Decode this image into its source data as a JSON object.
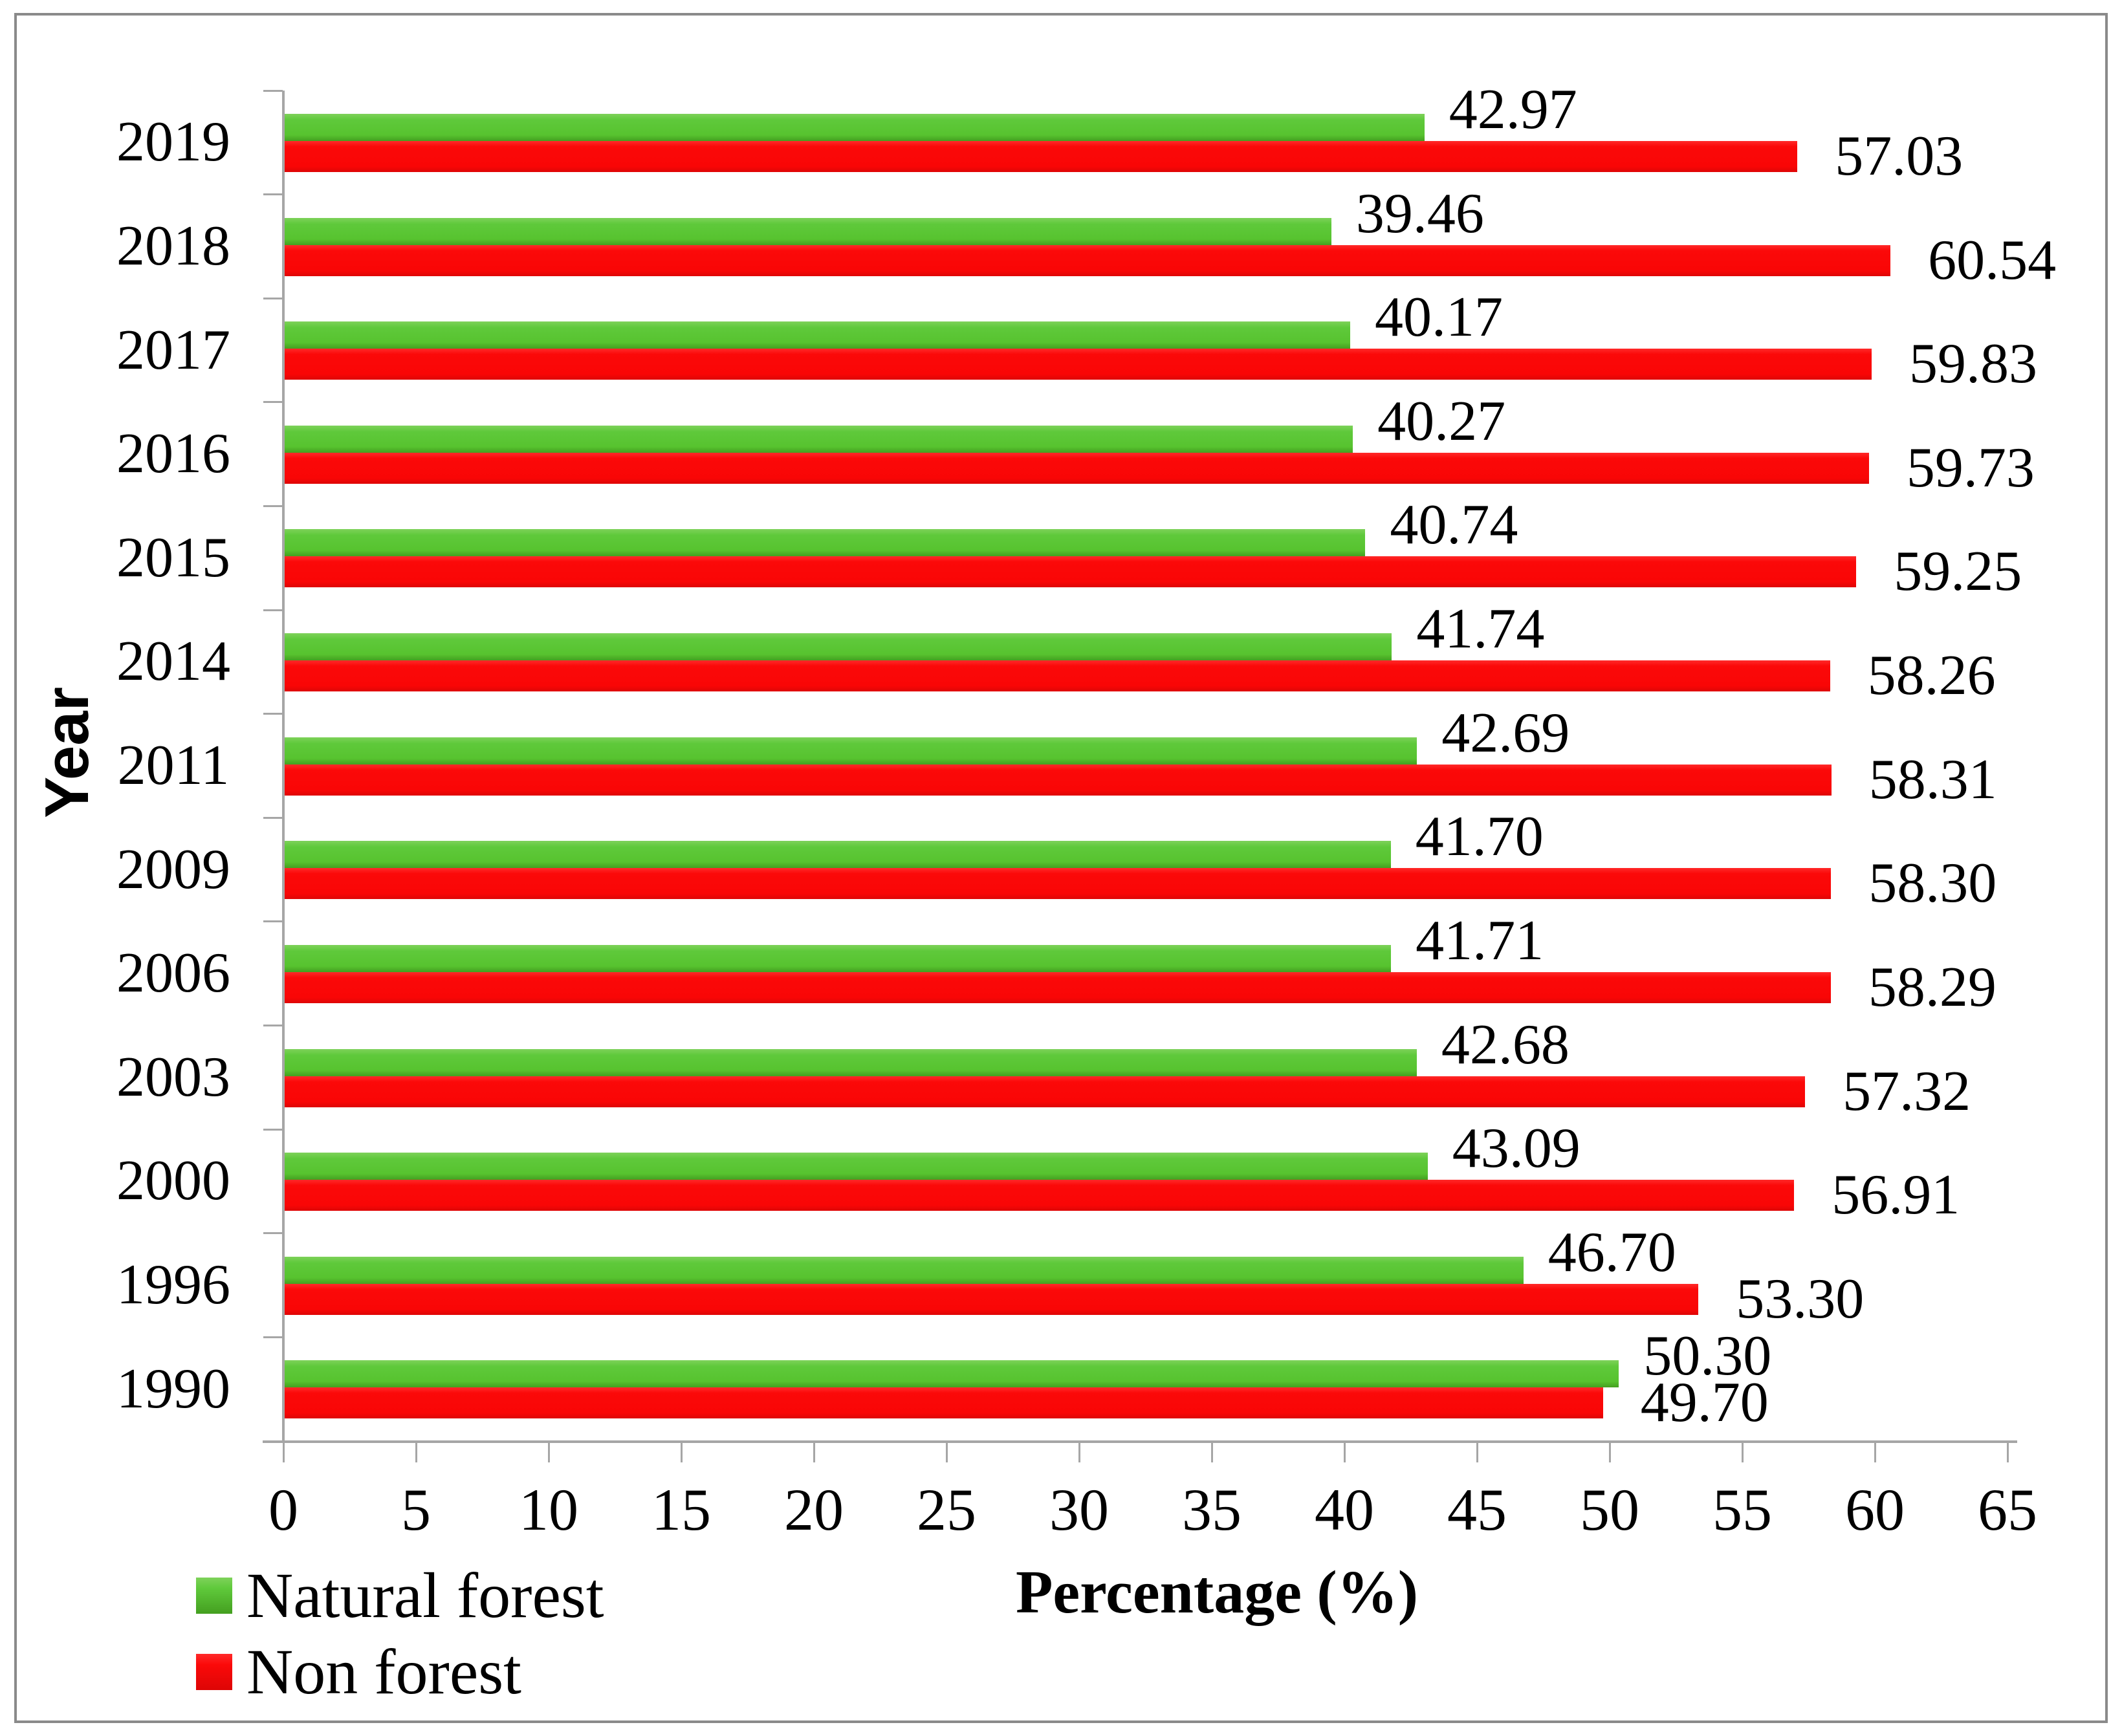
{
  "chart_data": {
    "type": "bar",
    "orientation": "horizontal",
    "title": "",
    "xlabel": "Percentage (%)",
    "ylabel": "Year",
    "xlim": [
      0,
      65
    ],
    "x_ticks": [
      0,
      5,
      10,
      15,
      20,
      25,
      30,
      35,
      40,
      45,
      50,
      55,
      60,
      65
    ],
    "grid": false,
    "legend_position": "bottom-left",
    "categories": [
      "2019",
      "2018",
      "2017",
      "2016",
      "2015",
      "2014",
      "2011",
      "2009",
      "2006",
      "2003",
      "2000",
      "1996",
      "1990"
    ],
    "series": [
      {
        "name": "Natural forest",
        "color": "#5fc93b",
        "values": [
          42.97,
          39.46,
          40.17,
          40.27,
          40.74,
          41.74,
          42.69,
          41.7,
          41.71,
          42.68,
          43.09,
          46.7,
          50.3
        ],
        "labels": [
          "42.97",
          "39.46",
          "40.17",
          "40.27",
          "40.74",
          "41.74",
          "42.69",
          "41.70",
          "41.71",
          "42.68",
          "43.09",
          "46.70",
          "50.30"
        ]
      },
      {
        "name": "Non forest",
        "color": "#fb0909",
        "values": [
          57.03,
          60.54,
          59.83,
          59.73,
          59.25,
          58.26,
          58.31,
          58.3,
          58.29,
          57.32,
          56.91,
          53.3,
          49.7
        ],
        "labels": [
          "57.03",
          "60.54",
          "59.83",
          "59.73",
          "59.25",
          "58.26",
          "58.31",
          "58.30",
          "58.29",
          "57.32",
          "56.91",
          "53.30",
          "49.70"
        ]
      }
    ]
  },
  "axis_color": "#a6a6a6",
  "frame_color": "#8a8a8a"
}
